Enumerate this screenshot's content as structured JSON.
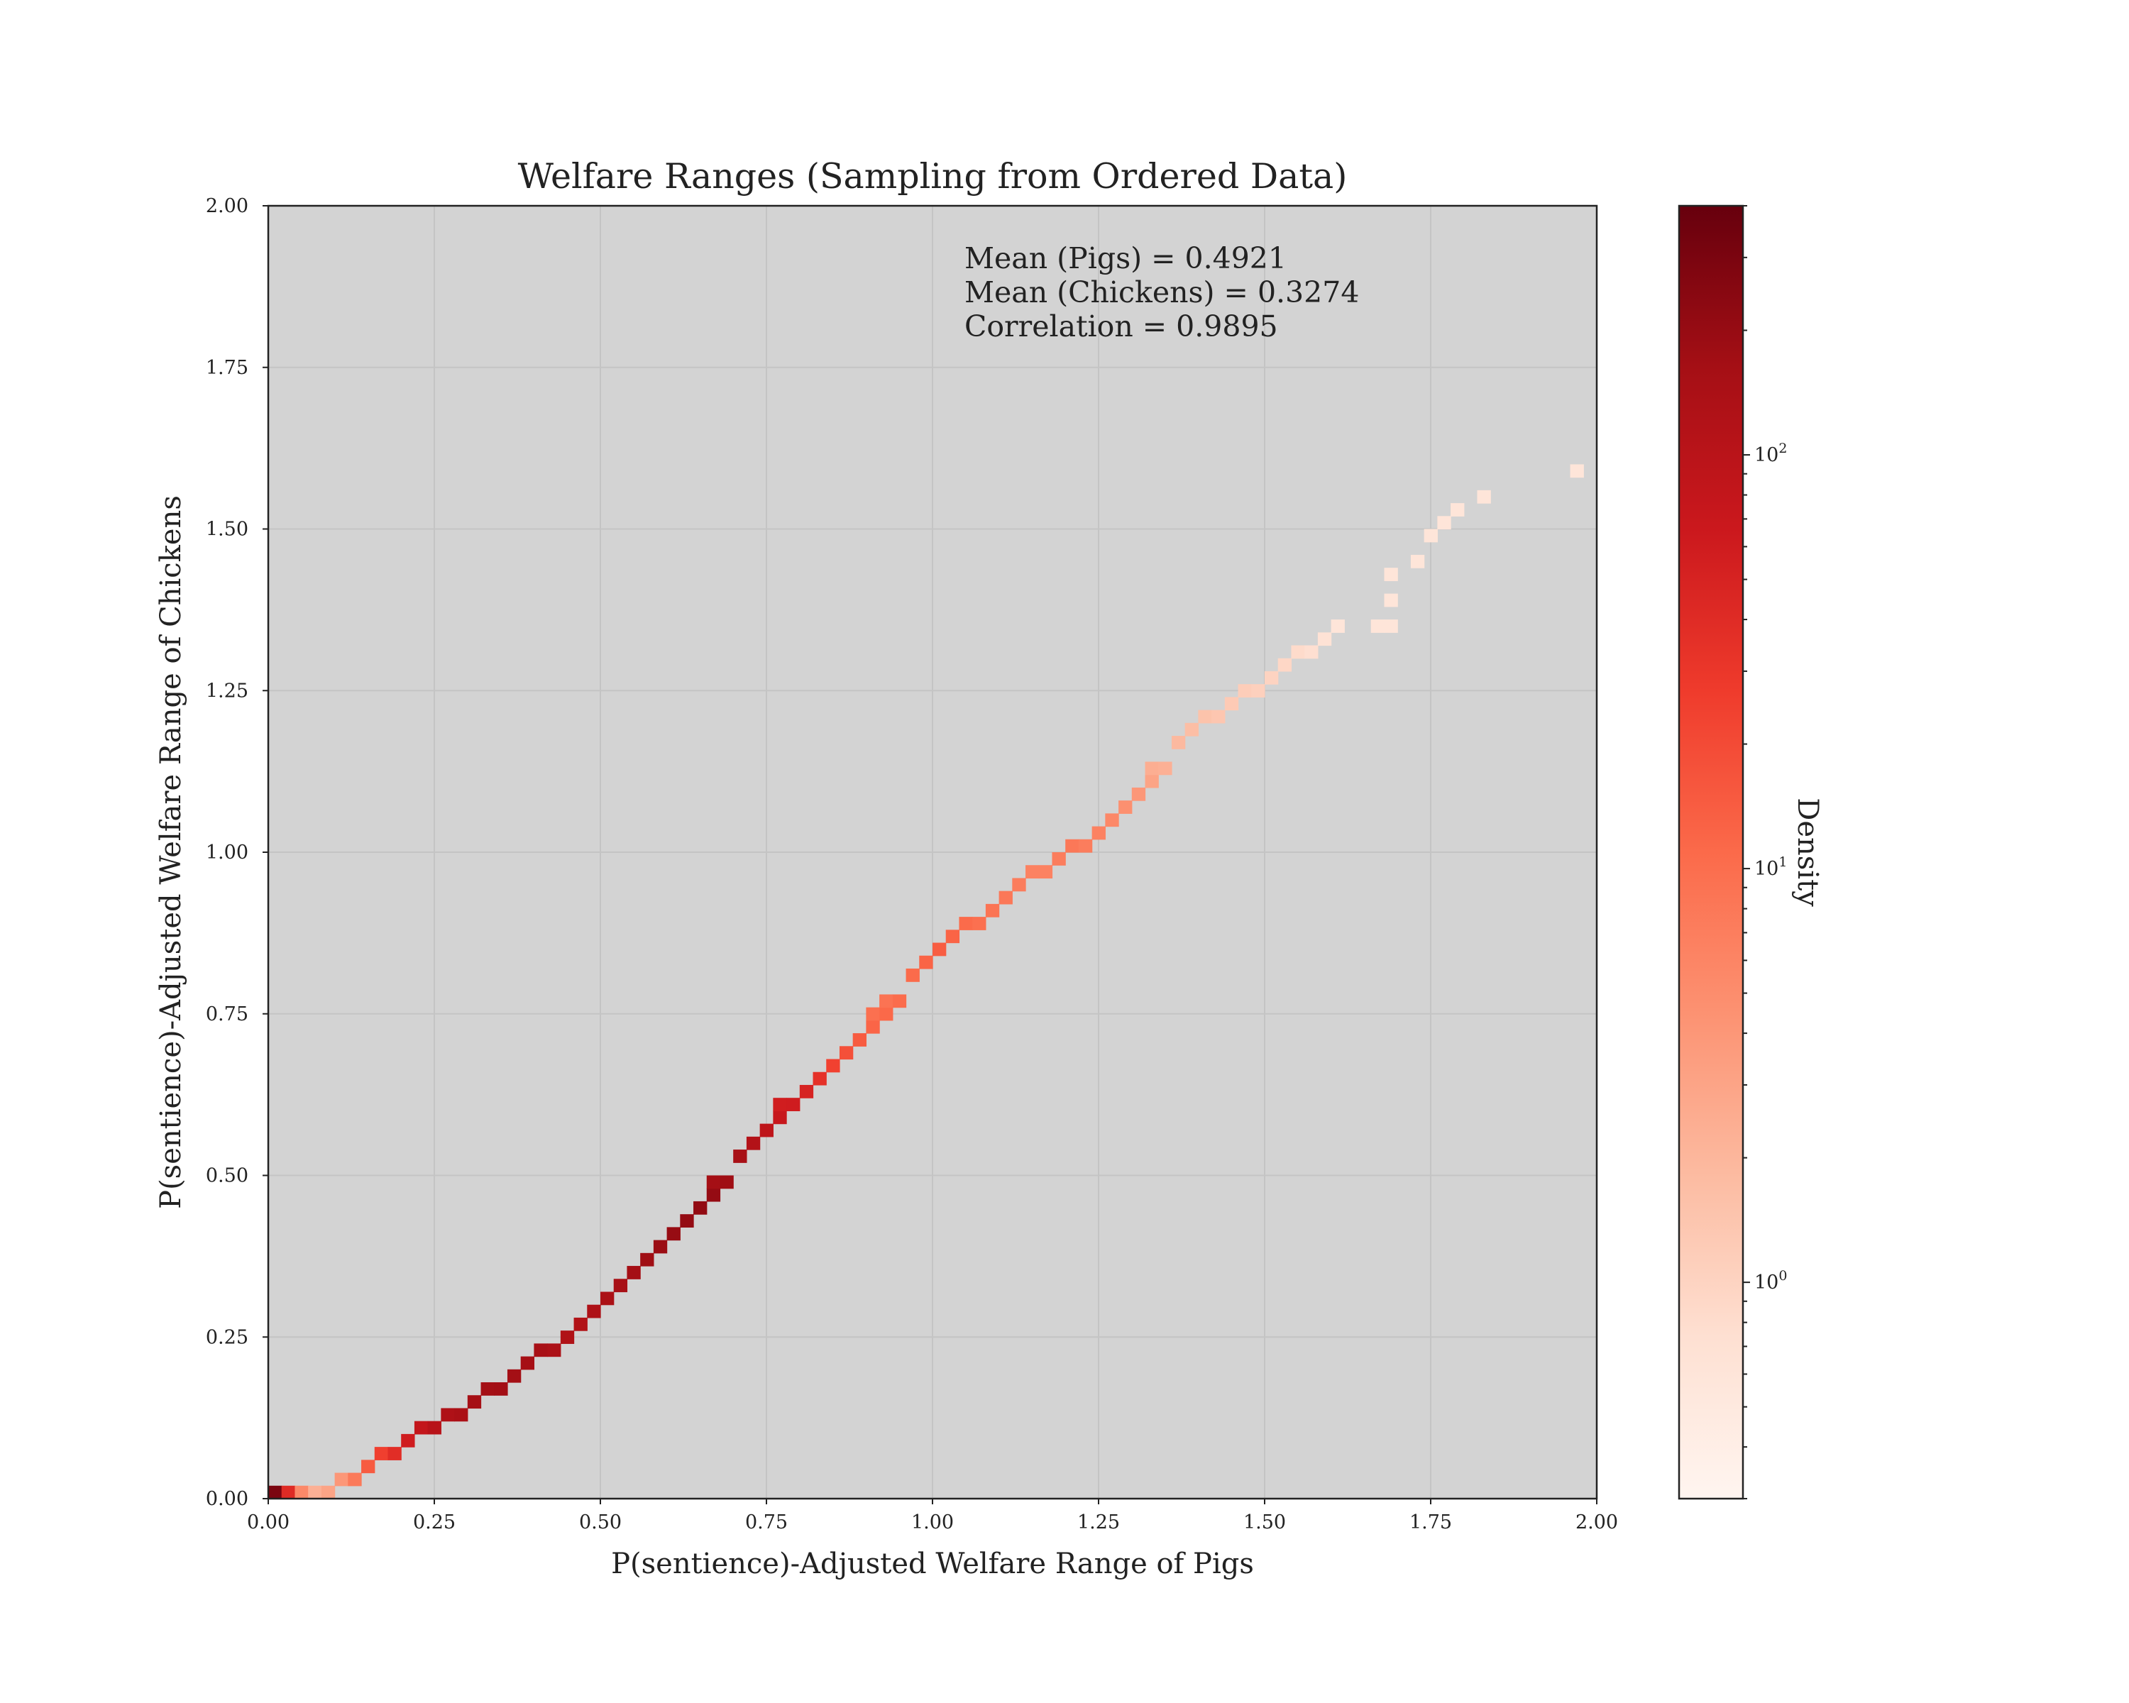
{
  "chart_data": {
    "type": "heatmap",
    "title": "Welfare Ranges (Sampling from Ordered Data)",
    "xlabel": "P(sentience)-Adjusted Welfare Range of Pigs",
    "ylabel": "P(sentience)-Adjusted Welfare Range of Chickens",
    "xlim": [
      0,
      2
    ],
    "ylim": [
      0,
      2
    ],
    "x_ticks": [
      "0.00",
      "0.25",
      "0.50",
      "0.75",
      "1.00",
      "1.25",
      "1.50",
      "1.75",
      "2.00"
    ],
    "y_ticks": [
      "0.00",
      "0.25",
      "0.50",
      "0.75",
      "1.00",
      "1.25",
      "1.50",
      "1.75",
      "2.00"
    ],
    "grid": true,
    "background_color": "#d3d3d3",
    "colormap": "Reds",
    "colorbar": {
      "label": "Density",
      "scale": "log",
      "range": [
        0.3,
        400
      ],
      "tick_values": [
        1,
        10,
        100
      ],
      "tick_labels": [
        "10^0",
        "10^1",
        "10^2"
      ]
    },
    "annotations": [
      "Mean (Pigs) = 0.4921",
      "Mean (Chickens) = 0.3274",
      "Correlation = 0.9895"
    ],
    "bin_width": 0.02,
    "curve": {
      "x": [
        0.0,
        0.05,
        0.1,
        0.15,
        0.2,
        0.25,
        0.3,
        0.35,
        0.4,
        0.45,
        0.5,
        0.55,
        0.6,
        0.65,
        0.7,
        0.75,
        0.8,
        0.85,
        0.9,
        0.95,
        1.0,
        1.05,
        1.1,
        1.15,
        1.2,
        1.25,
        1.3,
        1.35,
        1.4,
        1.45,
        1.5,
        1.55,
        1.6
      ],
      "y": [
        0.0,
        0.0,
        0.02,
        0.06,
        0.09,
        0.12,
        0.15,
        0.18,
        0.22,
        0.26,
        0.31,
        0.36,
        0.41,
        0.46,
        0.52,
        0.57,
        0.63,
        0.68,
        0.73,
        0.79,
        0.84,
        0.89,
        0.93,
        0.97,
        1.0,
        1.04,
        1.09,
        1.15,
        1.2,
        1.24,
        1.27,
        1.31,
        1.35
      ],
      "density": [
        300,
        2,
        4,
        20,
        60,
        120,
        160,
        170,
        150,
        120,
        140,
        170,
        200,
        220,
        150,
        80,
        50,
        20,
        12,
        10,
        14,
        10,
        8,
        6,
        8,
        6,
        4,
        2,
        1.5,
        1.2,
        1,
        0.8,
        0.6
      ]
    },
    "sparse_points": [
      {
        "x": 1.69,
        "y": 1.42,
        "density": 0.6
      },
      {
        "x": 1.69,
        "y": 1.38,
        "density": 0.6
      },
      {
        "x": 1.69,
        "y": 1.35,
        "density": 0.6
      },
      {
        "x": 1.67,
        "y": 1.35,
        "density": 0.6
      },
      {
        "x": 1.73,
        "y": 1.45,
        "density": 0.6
      },
      {
        "x": 1.75,
        "y": 1.48,
        "density": 0.6
      },
      {
        "x": 1.77,
        "y": 1.5,
        "density": 0.6
      },
      {
        "x": 1.79,
        "y": 1.52,
        "density": 0.6
      },
      {
        "x": 1.83,
        "y": 1.54,
        "density": 0.6
      },
      {
        "x": 1.97,
        "y": 1.59,
        "density": 0.6
      }
    ]
  }
}
